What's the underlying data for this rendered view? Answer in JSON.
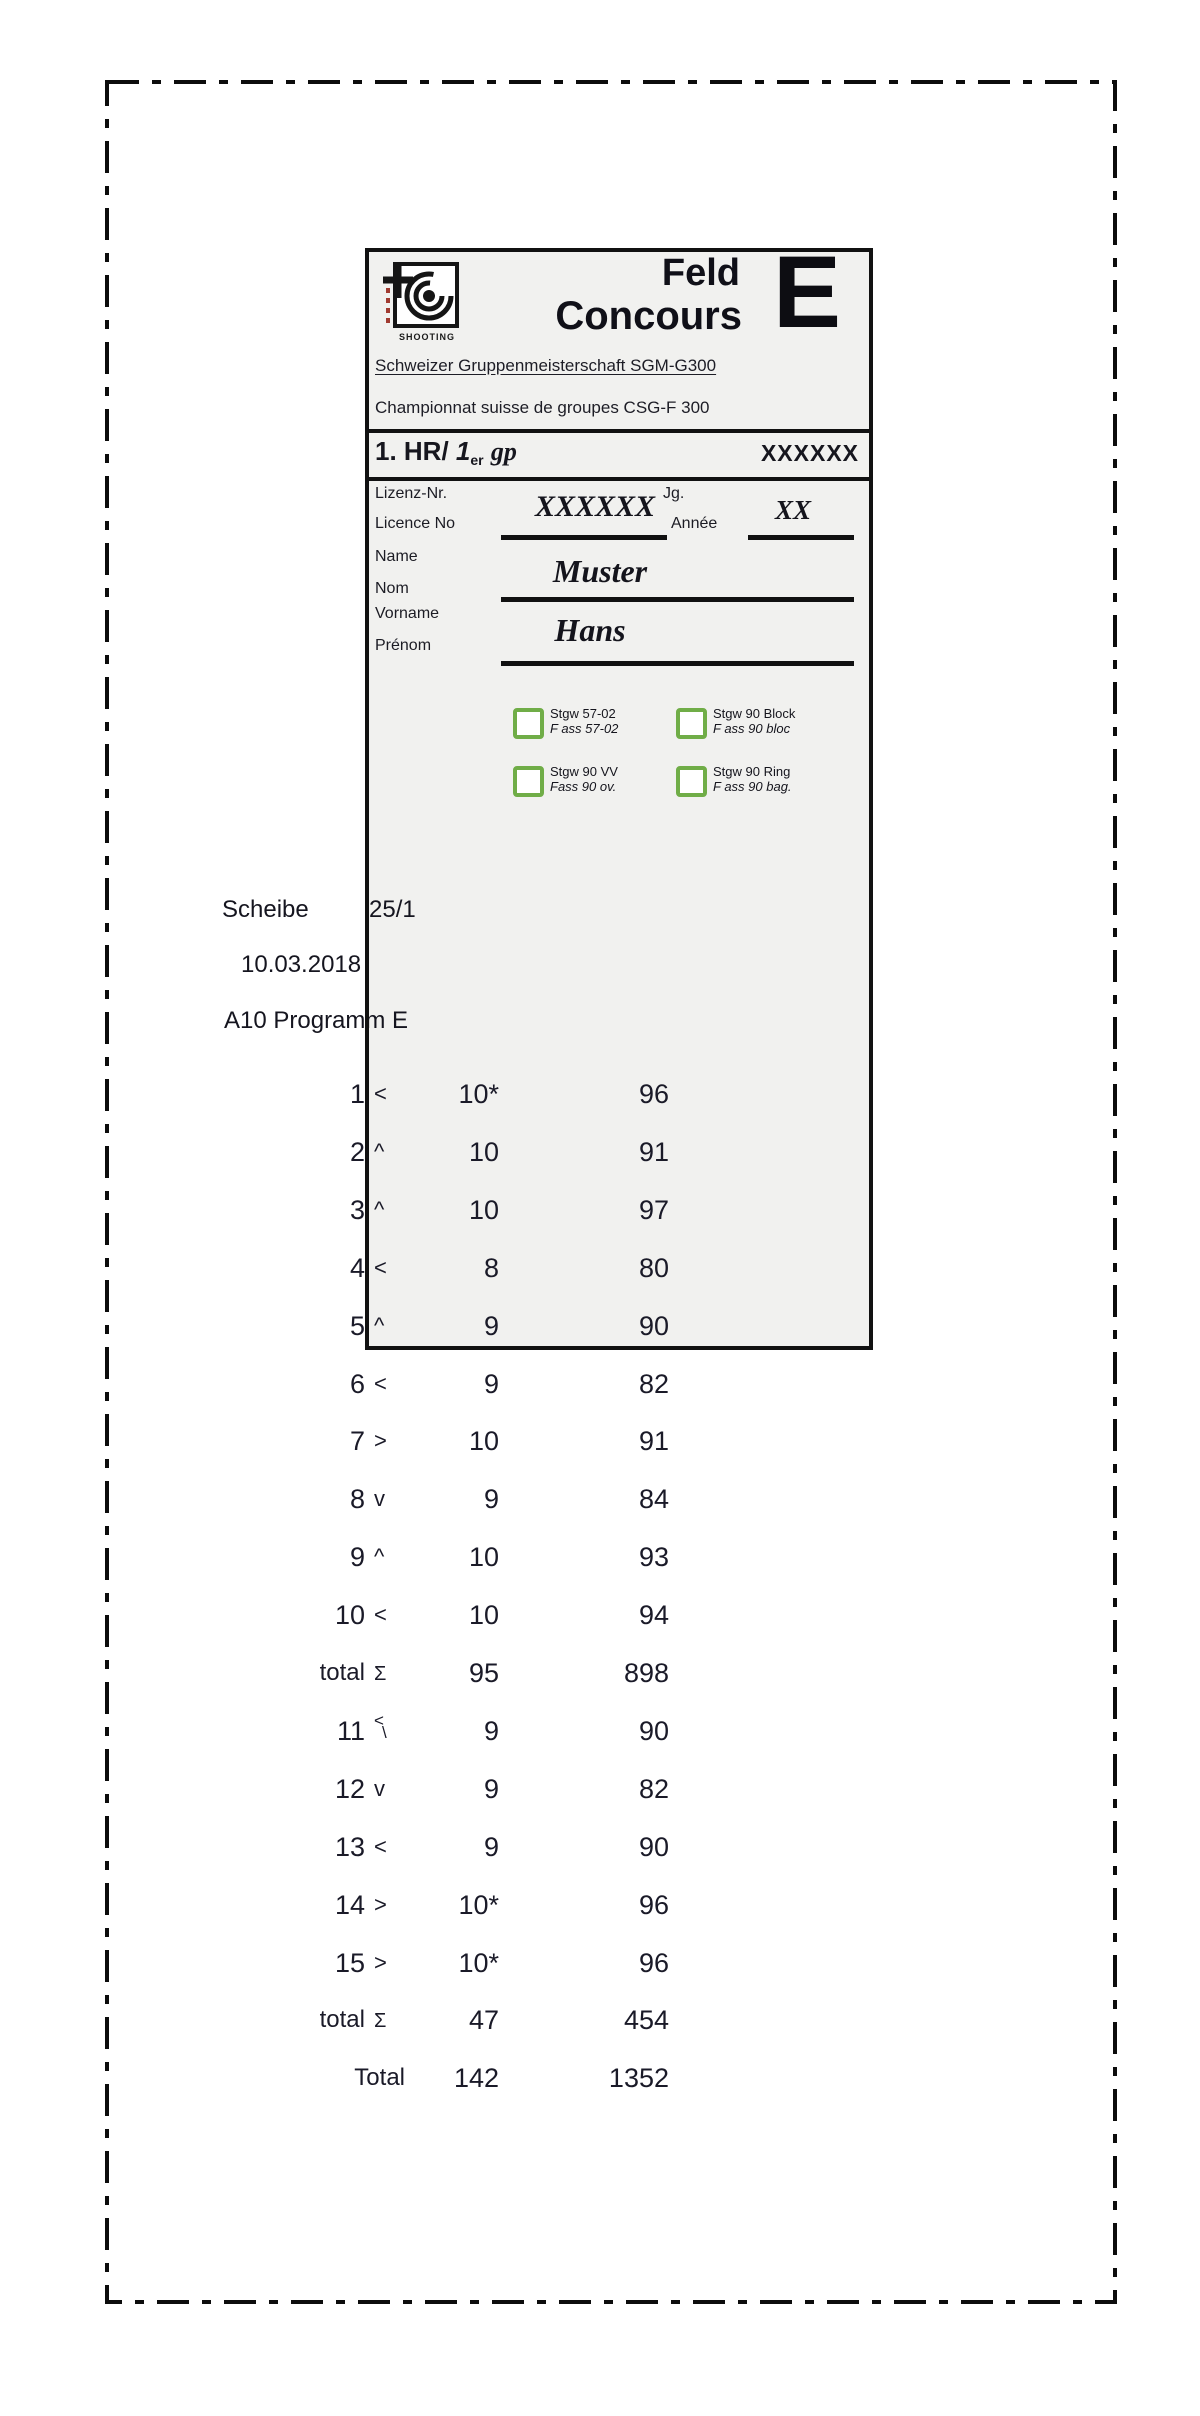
{
  "colors": {
    "card_bg": "#f1f1ef",
    "ink": "#16161e",
    "checkbox_green": "#70ad47"
  },
  "card": {
    "logo_caption": "SHOOTING",
    "title_top": "Feld",
    "title_bottom": "Concours",
    "program_letter": "E",
    "subtitle_de": "Schweizer Gruppenmeisterschaft SGM-G300",
    "subtitle_fr": "Championnat suisse de groupes CSG-F 300",
    "heat": {
      "bold": "1. HR/",
      "num": "1",
      "sup": "er",
      "suffix": "gp",
      "value": "XXXXXX"
    },
    "license": {
      "label_de": "Lizenz-Nr.",
      "label_fr": "Licence No",
      "value": "XXXXXX"
    },
    "year": {
      "label_de": "Jg.",
      "label_fr": "Année",
      "value": "XX"
    },
    "name": {
      "label_de": "Name",
      "label_fr": "Nom",
      "value": "Muster"
    },
    "firstname": {
      "label_de": "Vorname",
      "label_fr": "Prénom",
      "value": "Hans"
    },
    "weapons": [
      {
        "de": "Stgw 57-02",
        "fr": "F ass 57-02"
      },
      {
        "de": "Stgw 90 Block",
        "fr": "F ass 90 bloc"
      },
      {
        "de": "Stgw 90 VV",
        "fr": "Fass 90 ov."
      },
      {
        "de": "Stgw 90 Ring",
        "fr": "F ass 90 bag."
      }
    ]
  },
  "session": {
    "target_label": "Scheibe",
    "target_value": "25/1",
    "date": "10.03.2018",
    "program": "A10 Programm E"
  },
  "scores": {
    "rows": [
      {
        "label": "1",
        "dir": "<",
        "score": "10*",
        "result": "96"
      },
      {
        "label": "2",
        "dir": "^",
        "score": "10",
        "result": "91"
      },
      {
        "label": "3",
        "dir": "^",
        "score": "10",
        "result": "97"
      },
      {
        "label": "4",
        "dir": "<",
        "score": "8",
        "result": "80"
      },
      {
        "label": "5",
        "dir": "^",
        "score": "9",
        "result": "90"
      },
      {
        "label": "6",
        "dir": "<",
        "score": "9",
        "result": "82"
      },
      {
        "label": "7",
        "dir": ">",
        "score": "10",
        "result": "91"
      },
      {
        "label": "8",
        "dir": "v",
        "score": "9",
        "result": "84"
      },
      {
        "label": "9",
        "dir": "^",
        "score": "10",
        "result": "93"
      },
      {
        "label": "10",
        "dir": "<",
        "score": "10",
        "result": "94"
      },
      {
        "label": "total",
        "dir": "Σ",
        "score": "95",
        "result": "898",
        "is_subtotal": true
      },
      {
        "label": "11",
        "dir": "<",
        "dir2": "\\",
        "score": "9",
        "result": "90"
      },
      {
        "label": "12",
        "dir": "v",
        "score": "9",
        "result": "82"
      },
      {
        "label": "13",
        "dir": "<",
        "score": "9",
        "result": "90"
      },
      {
        "label": "14",
        "dir": ">",
        "score": "10*",
        "result": "96"
      },
      {
        "label": "15",
        "dir": ">",
        "score": "10*",
        "result": "96"
      },
      {
        "label": "total",
        "dir": "Σ",
        "score": "47",
        "result": "454",
        "is_subtotal": true
      },
      {
        "label": "Total",
        "dir": "",
        "score": "142",
        "result": "1352",
        "is_total": true
      }
    ]
  }
}
